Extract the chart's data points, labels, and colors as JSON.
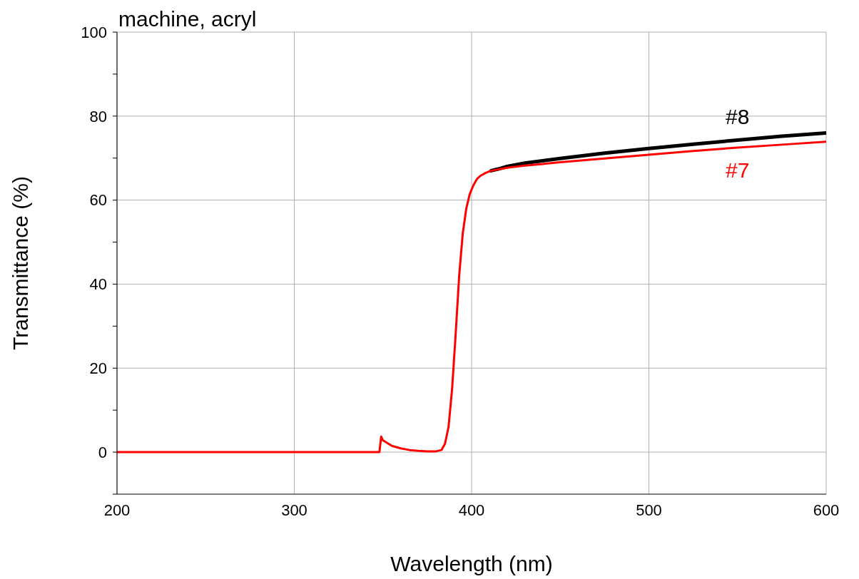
{
  "chart_data": {
    "type": "line",
    "title": "machine,  acryl",
    "xlabel": "Wavelength (nm)",
    "ylabel": "Transmittance (%)",
    "xlim": [
      200,
      600
    ],
    "xticks": [
      200,
      300,
      400,
      500,
      600
    ],
    "ylim": [
      -10,
      100
    ],
    "yticks": [
      {
        "value": -10,
        "label": null
      },
      0,
      {
        "value": 10,
        "label": null
      },
      20,
      {
        "value": 30,
        "label": null
      },
      40,
      {
        "value": 50,
        "label": null
      },
      60,
      {
        "value": 70,
        "label": null
      },
      80,
      {
        "value": 90,
        "label": null
      },
      100
    ],
    "grid": true,
    "marker": "none",
    "line_style": "solid",
    "x": [
      200,
      300,
      348,
      349,
      350,
      355,
      360,
      365,
      370,
      375,
      380,
      383,
      385,
      387,
      389,
      391,
      393,
      395,
      397,
      399,
      401,
      403,
      405,
      408,
      411,
      415,
      420,
      430,
      450,
      475,
      500,
      525,
      550,
      575,
      600
    ],
    "series": [
      {
        "name": "#8",
        "color": "#000000",
        "values": [
          null,
          null,
          null,
          null,
          null,
          null,
          null,
          null,
          null,
          null,
          null,
          null,
          null,
          null,
          null,
          null,
          null,
          null,
          null,
          null,
          null,
          null,
          null,
          null,
          67,
          67.4,
          68,
          68.8,
          69.9,
          71.2,
          72.3,
          73.3,
          74.3,
          75.2,
          76
        ]
      },
      {
        "name": "#7",
        "color": "#ff0000",
        "values": [
          0,
          0,
          0,
          3.7,
          2.8,
          1.5,
          0.9,
          0.5,
          0.3,
          0.2,
          0.2,
          0.5,
          2,
          6,
          15,
          28,
          42,
          52,
          58,
          61.5,
          63.5,
          65,
          65.8,
          66.5,
          67,
          67.3,
          67.7,
          68.2,
          69,
          69.9,
          70.8,
          71.7,
          72.5,
          73.2,
          73.9
        ]
      }
    ]
  }
}
